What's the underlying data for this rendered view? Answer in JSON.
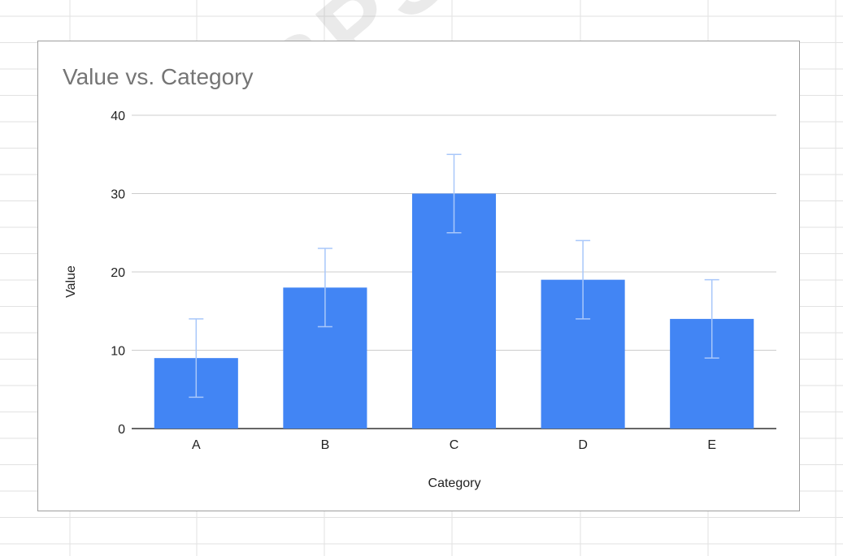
{
  "chart_data": {
    "type": "bar",
    "title": "Value vs. Category",
    "xlabel": "Category",
    "ylabel": "Value",
    "categories": [
      "A",
      "B",
      "C",
      "D",
      "E"
    ],
    "values": [
      9,
      18,
      30,
      19,
      14
    ],
    "error_bars": [
      5,
      5,
      5,
      5,
      5
    ],
    "ylim": [
      0,
      40
    ],
    "yticks": [
      "0",
      "10",
      "20",
      "30",
      "40"
    ],
    "grid": true,
    "legend": "none",
    "bar_color": "#4285f4",
    "error_bar_color": "#a8c7fa"
  },
  "watermark": "ARABPSYCH"
}
